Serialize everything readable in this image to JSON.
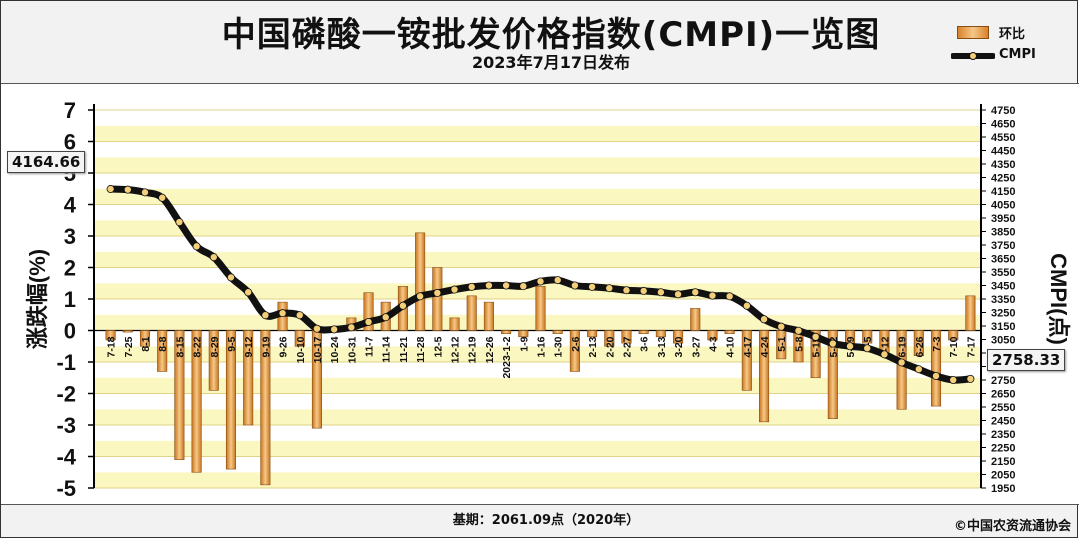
{
  "header": {
    "title": "中国磷酸一铵批发价格指数(CMPI)一览图",
    "subtitle": "2023年7月17日发布"
  },
  "legend": {
    "bar_label": "环比",
    "line_label": "CMPI"
  },
  "footer": {
    "base": "基期：2061.09点（2020年）",
    "copyright": "©中国农资流通协会"
  },
  "callouts": {
    "start": "4164.66",
    "end": "2758.33"
  },
  "colors": {
    "bar": "#e0943a",
    "band": "#fbf7c0",
    "line": "#111111",
    "marker": "#f3cf7a"
  },
  "chart_data": {
    "type": "bar",
    "x_tick_labels": [
      "7-18",
      "7-25",
      "8-1",
      "8-8",
      "8-15",
      "8-22",
      "8-29",
      "9-5",
      "9-12",
      "9-19",
      "9-26",
      "10-10",
      "10-17",
      "10-24",
      "10-31",
      "11-7",
      "11-14",
      "11-21",
      "11-28",
      "12-5",
      "12-12",
      "12-19",
      "12-26",
      "2023-1-2",
      "1-9",
      "1-16",
      "1-30",
      "2-6",
      "2-13",
      "2-20",
      "2-27",
      "3-6",
      "3-13",
      "3-20",
      "3-27",
      "4-3",
      "4-10",
      "4-17",
      "4-24",
      "5-1",
      "5-8",
      "5-15",
      "5-22",
      "5-29",
      "6-5",
      "6-12",
      "6-19",
      "6-26",
      "7-3",
      "7-10",
      "7-17"
    ],
    "y_left": {
      "label": "涨跌幅(%)",
      "range": [
        -5,
        7
      ],
      "ticks": [
        "-5",
        "-4",
        "-3",
        "-2",
        "-1",
        "0",
        "1",
        "2",
        "3",
        "4",
        "5",
        "6",
        "7"
      ]
    },
    "y_right": {
      "label": "CMPI(点)",
      "range": [
        1950,
        4750
      ],
      "ticks": [
        "1950",
        "2050",
        "2150",
        "2250",
        "2350",
        "2450",
        "2550",
        "2650",
        "2750",
        "2850",
        "2950",
        "3050",
        "3150",
        "3250",
        "3350",
        "3450",
        "3550",
        "3650",
        "3750",
        "3850",
        "3950",
        "4050",
        "4150",
        "4250",
        "4350",
        "4450",
        "4550",
        "4650",
        "4750"
      ]
    },
    "series": [
      {
        "name": "环比",
        "type": "bar",
        "axis": "left",
        "values": [
          -0.3,
          -0.05,
          -0.5,
          -1.3,
          -4.1,
          -4.5,
          -1.9,
          -4.4,
          -3.0,
          -4.9,
          0.9,
          -0.5,
          -3.1,
          -0.05,
          0.4,
          1.2,
          0.9,
          1.4,
          3.1,
          2.0,
          0.4,
          1.1,
          0.9,
          -0.1,
          -0.2,
          1.4,
          -0.1,
          -1.3,
          -0.2,
          -0.5,
          -0.4,
          -0.1,
          -0.2,
          -0.4,
          0.7,
          -0.3,
          -0.1,
          -1.9,
          -2.9,
          -0.9,
          -1.0,
          -1.5,
          -2.8,
          -0.5,
          -0.4,
          -0.8,
          -2.5,
          -0.8,
          -2.4,
          -0.3,
          1.1
        ]
      },
      {
        "name": "CMPI",
        "type": "line",
        "axis": "right",
        "values": [
          4164.66,
          4160,
          4140,
          4100,
          3920,
          3740,
          3660,
          3510,
          3400,
          3230,
          3245,
          3230,
          3130,
          3125,
          3140,
          3180,
          3215,
          3300,
          3370,
          3395,
          3420,
          3440,
          3450,
          3450,
          3445,
          3480,
          3490,
          3450,
          3440,
          3430,
          3415,
          3410,
          3400,
          3385,
          3400,
          3375,
          3370,
          3300,
          3200,
          3145,
          3115,
          3070,
          3020,
          3000,
          2985,
          2940,
          2880,
          2830,
          2780,
          2750,
          2758.33
        ]
      }
    ],
    "grid": true,
    "legend_position": "top-right"
  }
}
